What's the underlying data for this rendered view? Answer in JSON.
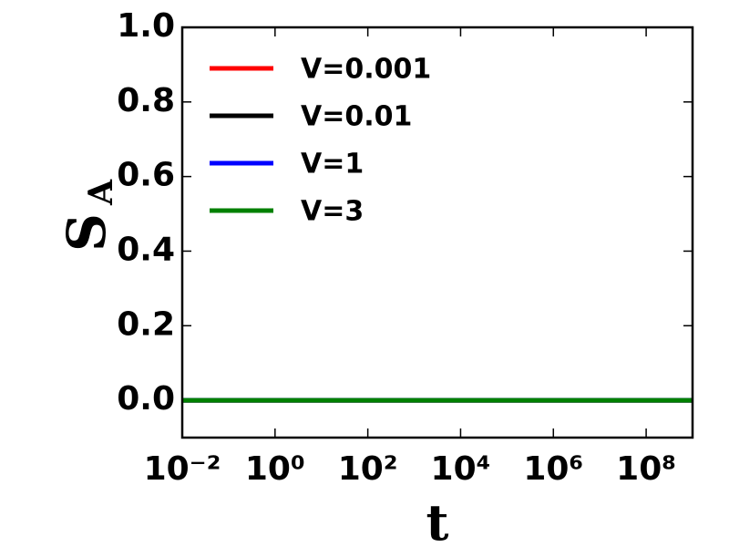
{
  "chart_data": {
    "type": "line",
    "xlabel": "t",
    "ylabel": "S",
    "ylabel_subscript": "A",
    "x": [
      0.01,
      1000000000
    ],
    "series": [
      {
        "name": "V=0.001",
        "color": "#ff0000",
        "values": [
          0,
          0
        ]
      },
      {
        "name": "V=0.01",
        "color": "#000000",
        "values": [
          0,
          0
        ]
      },
      {
        "name": "V=1",
        "color": "#0000ff",
        "values": [
          0,
          0
        ]
      },
      {
        "name": "V=3",
        "color": "#008000",
        "values": [
          0,
          0
        ]
      }
    ],
    "xscale": "log",
    "xlim": [
      0.01,
      1000000000
    ],
    "xticks": [
      {
        "value": 0.01,
        "label": "10⁻²"
      },
      {
        "value": 1,
        "label": "10⁰"
      },
      {
        "value": 100,
        "label": "10²"
      },
      {
        "value": 10000,
        "label": "10⁴"
      },
      {
        "value": 1000000,
        "label": "10⁶"
      },
      {
        "value": 100000000,
        "label": "10⁸"
      }
    ],
    "ylim": [
      -0.1,
      1.0
    ],
    "yticks": [
      {
        "value": 0,
        "label": "0.0"
      },
      {
        "value": 0.2,
        "label": "0.2"
      },
      {
        "value": 0.4,
        "label": "0.4"
      },
      {
        "value": 0.6,
        "label": "0.6"
      },
      {
        "value": 0.8,
        "label": "0.8"
      },
      {
        "value": 1.0,
        "label": "1.0"
      }
    ],
    "legend": "upper left",
    "grid": false
  }
}
